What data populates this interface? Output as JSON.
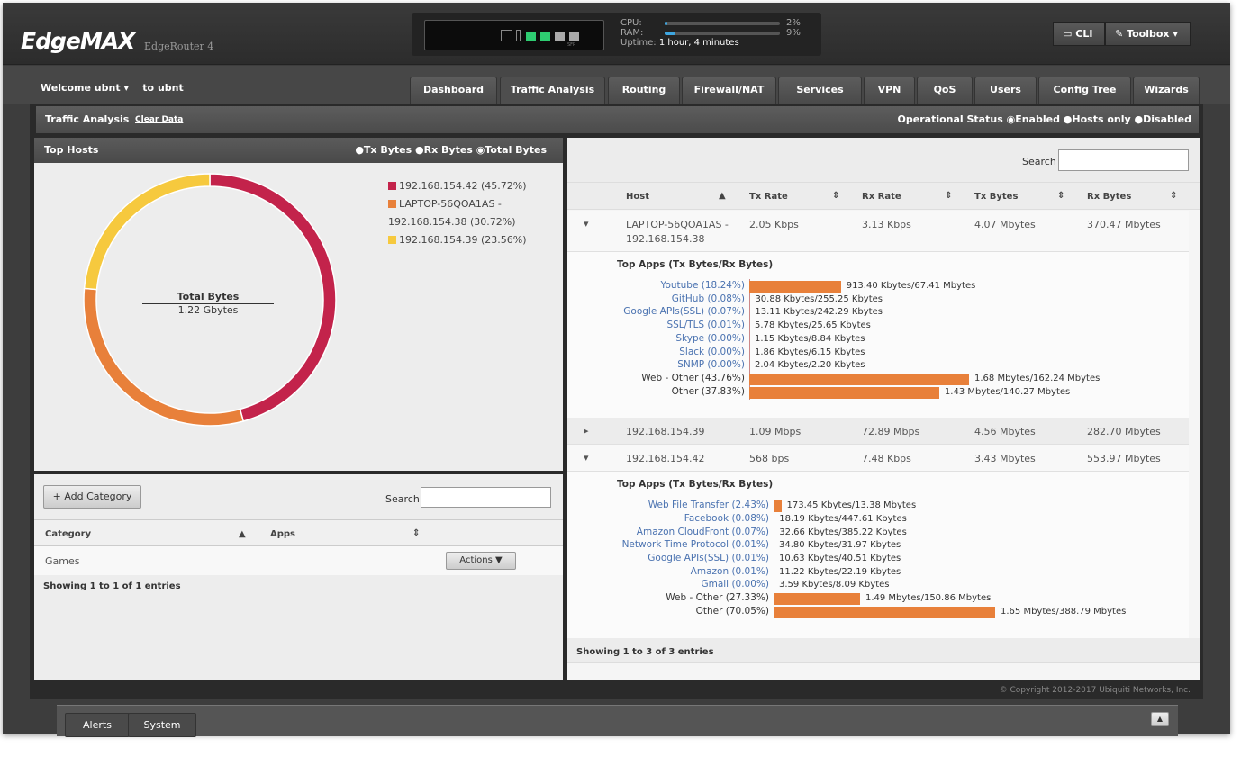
{
  "header": {
    "logo": "EdgeMAX",
    "model": "EdgeRouter 4",
    "cpu_label": "CPU:",
    "ram_label": "RAM:",
    "uptime_label": "Uptime:",
    "cpu": "2%",
    "ram": "9%",
    "cpu_pct": 2,
    "ram_pct": 9,
    "uptime": "1 hour, 4 minutes",
    "sfp_label": "SFP",
    "cli": "CLI",
    "toolbox": "Toolbox"
  },
  "nav": {
    "welcome": "Welcome ubnt",
    "to": "to ubnt",
    "tabs": [
      "Dashboard",
      "Traffic Analysis",
      "Routing",
      "Firewall/NAT",
      "Services",
      "VPN",
      "QoS",
      "Users",
      "Config Tree",
      "Wizards"
    ],
    "active": "Traffic Analysis"
  },
  "bar": {
    "title": "Traffic Analysis",
    "clear": "Clear Data",
    "status_label": "Operational Status",
    "options": [
      "Enabled",
      "Hosts only",
      "Disabled"
    ],
    "selected": "Enabled"
  },
  "top_hosts": {
    "title": "Top Hosts",
    "options": [
      "Tx Bytes",
      "Rx Bytes",
      "Total Bytes"
    ],
    "selected": "Total Bytes",
    "center_label": "Total Bytes",
    "center_value": "1.22 Gbytes",
    "slices": [
      {
        "label": "192.168.154.42 (45.72%)",
        "pct": 45.72,
        "color": "#c3234b"
      },
      {
        "label": "LAPTOP-56QOA1AS - 192.168.154.38 (30.72%)",
        "pct": 30.72,
        "color": "#e8803a"
      },
      {
        "label": "192.168.154.39 (23.56%)",
        "pct": 23.56,
        "color": "#f6c93e"
      }
    ]
  },
  "categories": {
    "add": "Add Category",
    "search_label": "Search",
    "search_value": "",
    "col_category": "Category",
    "col_apps": "Apps",
    "rows": [
      {
        "category": "Games",
        "actions": "Actions"
      }
    ],
    "footer": "Showing 1 to 1 of 1 entries"
  },
  "hosts": {
    "search_label": "Search",
    "search_value": "",
    "columns": [
      "Host",
      "Tx Rate",
      "Rx Rate",
      "Tx Bytes",
      "Rx Bytes"
    ],
    "apps_title": "Top Apps (Tx Bytes/Rx Bytes)",
    "footer": "Showing 1 to 3 of 3 entries",
    "rows": [
      {
        "host": "LAPTOP-56QOA1AS -",
        "host2": "192.168.154.38",
        "tx_rate": "2.05 Kbps",
        "rx_rate": "3.13 Kbps",
        "tx_bytes": "4.07 Mbytes",
        "rx_bytes": "370.47 Mbytes",
        "expanded": true,
        "apps": [
          {
            "name": "Youtube (18.24%)",
            "pct": 18.24,
            "value": "913.40 Kbytes/67.41 Mbytes",
            "link": true
          },
          {
            "name": "GitHub (0.08%)",
            "pct": 0.08,
            "value": "30.88 Kbytes/255.25 Kbytes",
            "link": true
          },
          {
            "name": "Google APIs(SSL) (0.07%)",
            "pct": 0.07,
            "value": "13.11 Kbytes/242.29 Kbytes",
            "link": true
          },
          {
            "name": "SSL/TLS (0.01%)",
            "pct": 0.01,
            "value": "5.78 Kbytes/25.65 Kbytes",
            "link": true
          },
          {
            "name": "Skype (0.00%)",
            "pct": 0,
            "value": "1.15 Kbytes/8.84 Kbytes",
            "link": true
          },
          {
            "name": "Slack (0.00%)",
            "pct": 0,
            "value": "1.86 Kbytes/6.15 Kbytes",
            "link": true
          },
          {
            "name": "SNMP (0.00%)",
            "pct": 0,
            "value": "2.04 Kbytes/2.20 Kbytes",
            "link": true
          },
          {
            "name": "Web - Other (43.76%)",
            "pct": 43.76,
            "value": "1.68 Mbytes/162.24 Mbytes",
            "link": false
          },
          {
            "name": "Other (37.83%)",
            "pct": 37.83,
            "value": "1.43 Mbytes/140.27 Mbytes",
            "link": false
          }
        ]
      },
      {
        "host": "192.168.154.39",
        "host2": "",
        "tx_rate": "1.09 Mbps",
        "rx_rate": "72.89 Mbps",
        "tx_bytes": "4.56 Mbytes",
        "rx_bytes": "282.70 Mbytes",
        "expanded": false,
        "apps": []
      },
      {
        "host": "192.168.154.42",
        "host2": "",
        "tx_rate": "568 bps",
        "rx_rate": "7.48 Kbps",
        "tx_bytes": "3.43 Mbytes",
        "rx_bytes": "553.97 Mbytes",
        "expanded": true,
        "apps": [
          {
            "name": "Web File Transfer (2.43%)",
            "pct": 2.43,
            "value": "173.45 Kbytes/13.38 Mbytes",
            "link": true
          },
          {
            "name": "Facebook (0.08%)",
            "pct": 0.08,
            "value": "18.19 Kbytes/447.61 Kbytes",
            "link": true
          },
          {
            "name": "Amazon CloudFront (0.07%)",
            "pct": 0.07,
            "value": "32.66 Kbytes/385.22 Kbytes",
            "link": true
          },
          {
            "name": "Network Time Protocol (0.01%)",
            "pct": 0.01,
            "value": "34.80 Kbytes/31.97 Kbytes",
            "link": true
          },
          {
            "name": "Google APIs(SSL) (0.01%)",
            "pct": 0.01,
            "value": "10.63 Kbytes/40.51 Kbytes",
            "link": true
          },
          {
            "name": "Amazon (0.01%)",
            "pct": 0.01,
            "value": "11.22 Kbytes/22.19 Kbytes",
            "link": true
          },
          {
            "name": "Gmail (0.00%)",
            "pct": 0,
            "value": "3.59 Kbytes/8.09 Kbytes",
            "link": true
          },
          {
            "name": "Web - Other (27.33%)",
            "pct": 27.33,
            "value": "1.49 Mbytes/150.86 Mbytes",
            "link": false
          },
          {
            "name": "Other (70.05%)",
            "pct": 70.05,
            "value": "1.65 Mbytes/388.79 Mbytes",
            "link": false
          }
        ]
      }
    ]
  },
  "copyright": "© Copyright 2012-2017 Ubiquiti Networks, Inc.",
  "bottom": {
    "tabs": [
      "Alerts",
      "System"
    ]
  }
}
